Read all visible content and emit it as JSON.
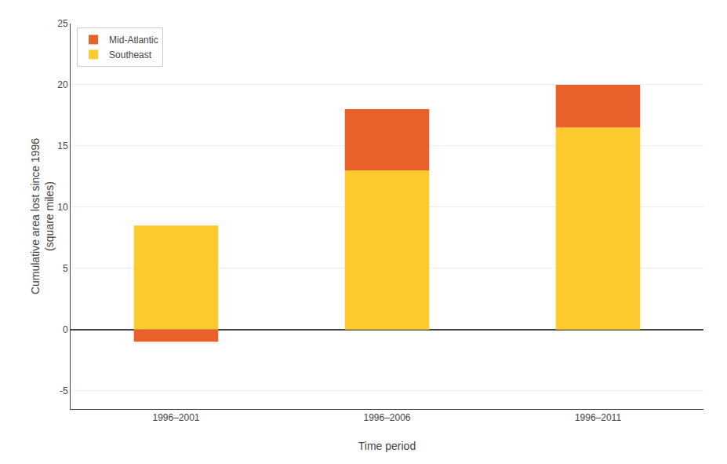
{
  "chart_data": {
    "type": "bar",
    "stacked": true,
    "xlabel": "Time period",
    "ylabel": "Cumulative area lost since 1996\n(square miles)",
    "categories": [
      "1996–2001",
      "1996–2006",
      "1996–2011"
    ],
    "series": [
      {
        "name": "Southeast",
        "color": "#FFCA2E",
        "values": [
          8.5,
          13.0,
          16.5
        ]
      },
      {
        "name": "Mid-Atlantic",
        "color": "#E8602A",
        "values": [
          -1.0,
          5.0,
          3.5
        ]
      }
    ],
    "ylim": [
      -6.5,
      25
    ],
    "yticks": [
      -5,
      0,
      5,
      10,
      15,
      20,
      25
    ],
    "grid": true,
    "legend": "upper left"
  }
}
